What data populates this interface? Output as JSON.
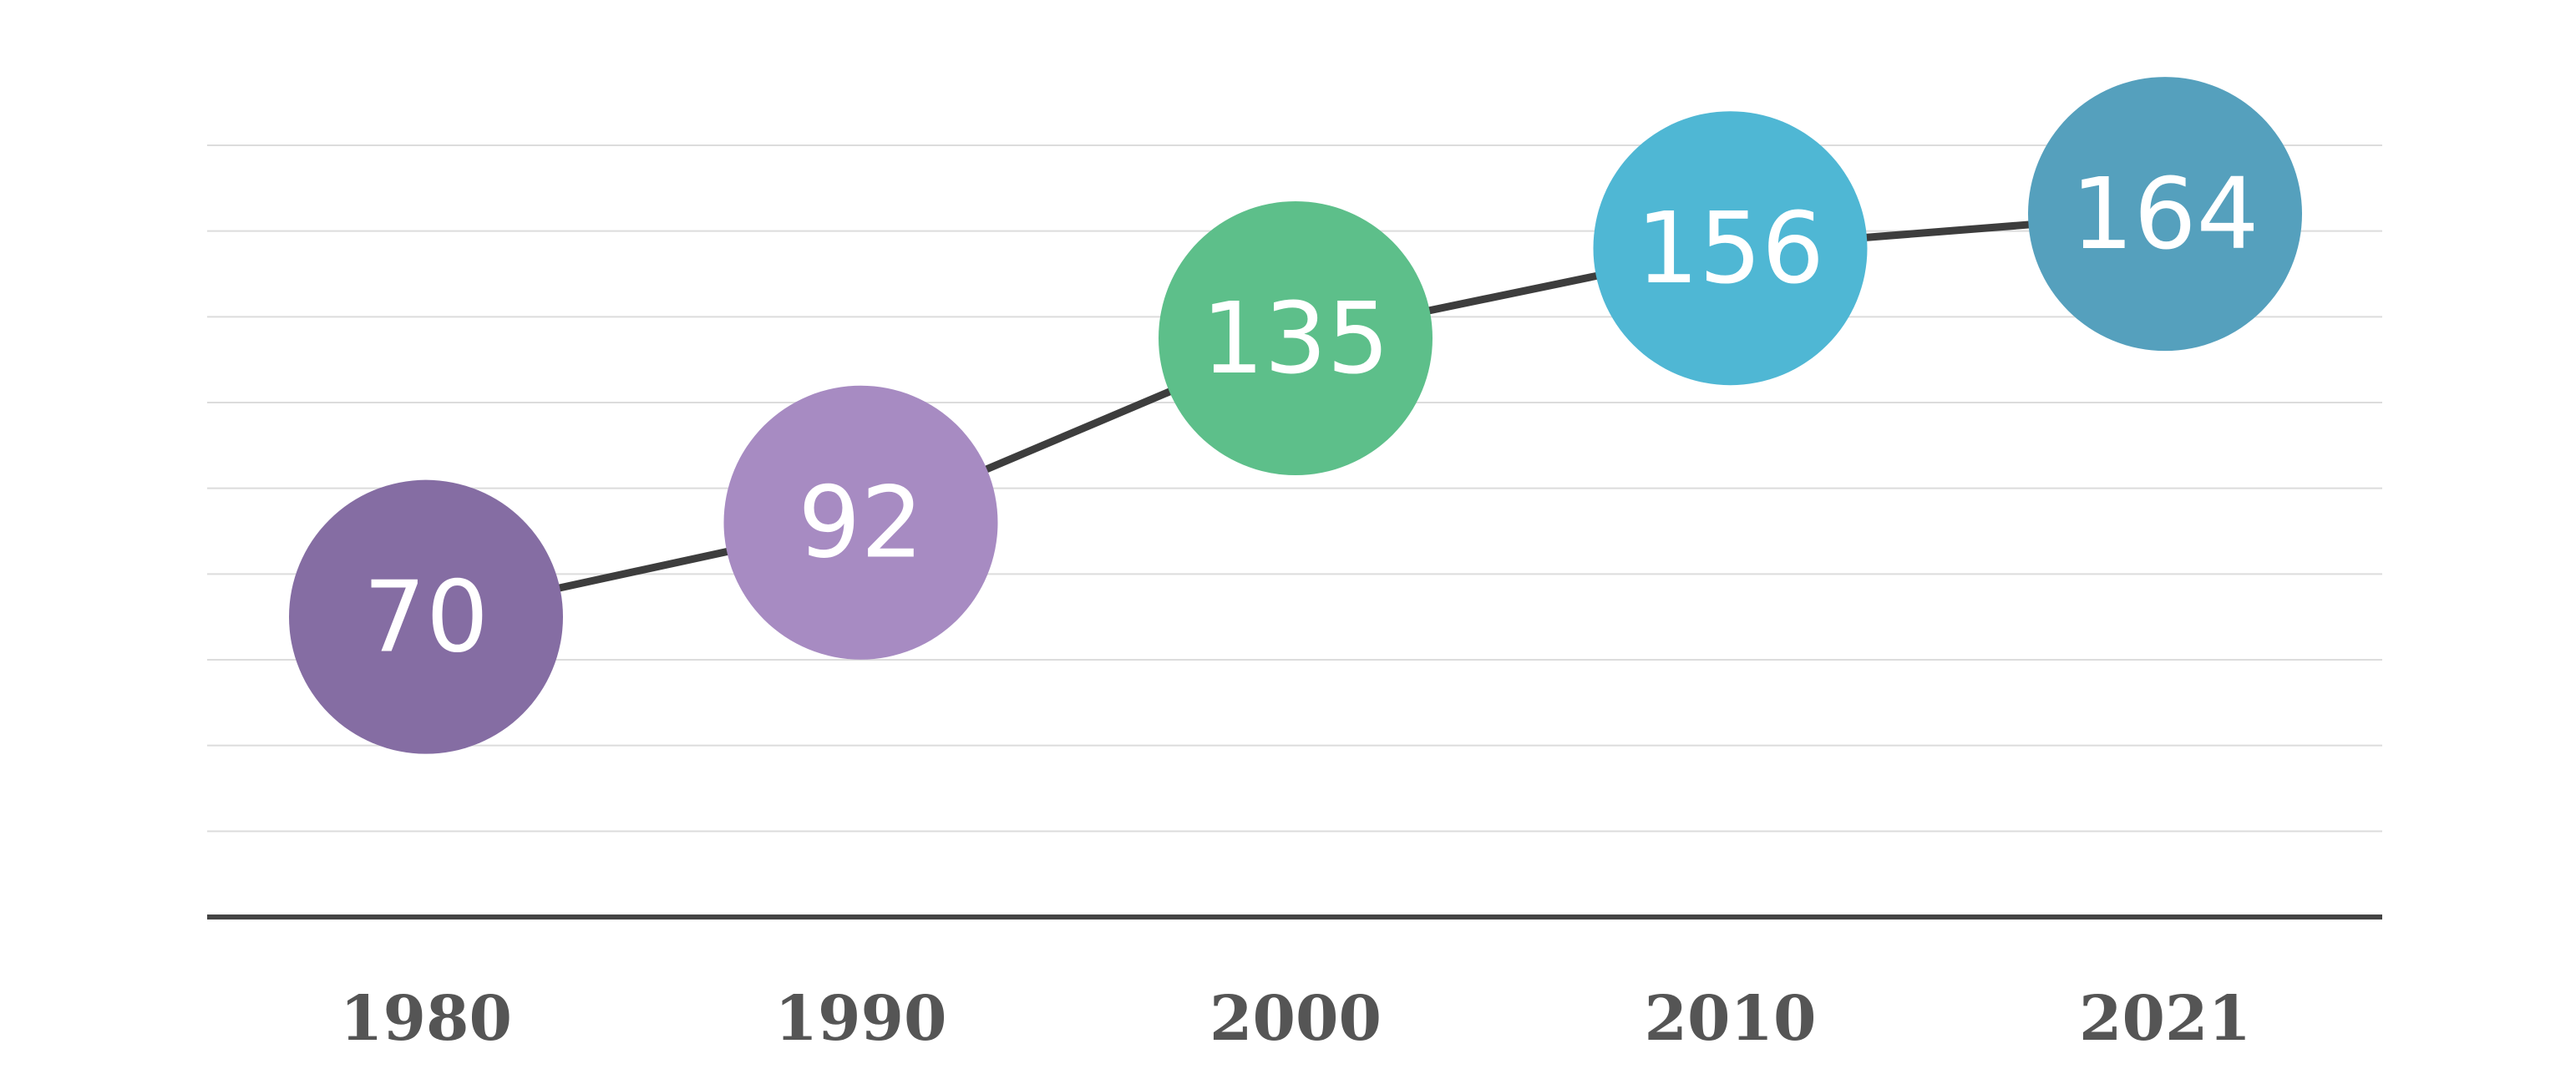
{
  "chart_data": {
    "type": "line",
    "categories": [
      "1980",
      "1990",
      "2000",
      "2010",
      "2021"
    ],
    "values": [
      70,
      92,
      135,
      156,
      164
    ],
    "title": "",
    "xlabel": "",
    "ylabel": "",
    "ylim": [
      0,
      180
    ],
    "grid": true,
    "legend": "none",
    "colors": [
      "#856da3",
      "#a78bc2",
      "#5dbf8a",
      "#4fb7d4",
      "#55a0bd"
    ]
  }
}
